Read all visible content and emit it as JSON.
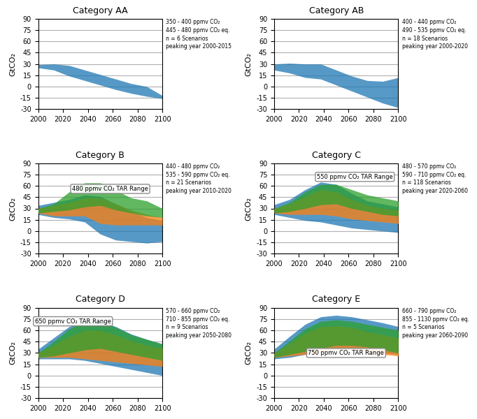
{
  "chart_data": [
    {
      "type": "band",
      "title": "Category AA",
      "ylabel": "GtCO₂",
      "x": [
        2000,
        2012.5,
        2025,
        2037.5,
        2050,
        2062.5,
        2075,
        2087.5,
        2100
      ],
      "xlim": [
        2000,
        2100
      ],
      "xticks": [
        2000,
        2020,
        2040,
        2060,
        2080,
        2100
      ],
      "ylim": [
        -30,
        90
      ],
      "yticks": [
        -30,
        -15,
        0,
        15,
        30,
        45,
        60,
        75,
        90
      ],
      "grid": "y",
      "text_box": [
        "350 - 400 ppmv CO₂",
        "445 - 480 ppmv CO₂ eq.",
        "n = 6 Scenarios",
        "peaking year 2000-2015"
      ],
      "annotations": [],
      "series": [
        {
          "high": [
            29,
            30,
            28,
            22,
            16,
            10,
            4,
            0,
            -12
          ],
          "low": [
            25,
            22,
            14,
            8,
            2,
            -4,
            -9,
            -13,
            -16
          ]
        }
      ]
    },
    {
      "type": "band",
      "title": "Category AB",
      "ylabel": "GtCO₂",
      "x": [
        2000,
        2012.5,
        2025,
        2037.5,
        2050,
        2062.5,
        2075,
        2087.5,
        2100
      ],
      "xlim": [
        2000,
        2100
      ],
      "xticks": [
        2000,
        2020,
        2040,
        2060,
        2080,
        2100
      ],
      "ylim": [
        -30,
        90
      ],
      "yticks": [
        -30,
        -15,
        0,
        15,
        30,
        45,
        60,
        75,
        90
      ],
      "grid": "y",
      "text_box": [
        "400 - 440 ppmv CO₂",
        "490 - 535 ppmv CO₂ eq.",
        "n = 18 Scenarios",
        "peaking year 2000-2020"
      ],
      "annotations": [],
      "series": [
        {
          "high": [
            30,
            31,
            30,
            30,
            22,
            14,
            8,
            7,
            12
          ],
          "low": [
            22,
            18,
            12,
            10,
            2,
            -6,
            -14,
            -22,
            -28
          ]
        }
      ]
    },
    {
      "type": "band",
      "title": "Category B",
      "ylabel": "GtCO₂",
      "x": [
        2000,
        2012.5,
        2025,
        2037.5,
        2050,
        2062.5,
        2075,
        2087.5,
        2100
      ],
      "xlim": [
        2000,
        2100
      ],
      "xticks": [
        2000,
        2020,
        2040,
        2060,
        2080,
        2100
      ],
      "ylim": [
        -30,
        90
      ],
      "yticks": [
        -30,
        -15,
        0,
        15,
        30,
        45,
        60,
        75,
        90
      ],
      "grid": "y",
      "text_box": [
        "440 - 480 ppmv CO₂",
        "535 - 590 ppmv CO₂ eq.",
        "n = 21 Scenarios",
        "peaking year 2010-2020"
      ],
      "annotations": [
        {
          "text": "480 ppmv CO₂ TAR Range",
          "x": 2058,
          "y": 56
        }
      ],
      "series": [
        {
          "high": [
            34,
            38,
            42,
            48,
            46,
            36,
            26,
            18,
            14
          ],
          "low": [
            22,
            18,
            16,
            12,
            -4,
            -12,
            -14,
            -16,
            -14
          ]
        },
        {
          "high": [
            30,
            34,
            38,
            44,
            44,
            36,
            28,
            22,
            18
          ],
          "low": [
            24,
            20,
            20,
            20,
            10,
            8,
            8,
            8,
            8
          ]
        },
        {
          "high": [
            30,
            36,
            52,
            64,
            64,
            54,
            44,
            40,
            30
          ],
          "low": [
            24,
            26,
            28,
            32,
            34,
            28,
            24,
            20,
            18
          ]
        }
      ]
    },
    {
      "type": "band",
      "title": "Category C",
      "ylabel": "GtCO₂",
      "x": [
        2000,
        2012.5,
        2025,
        2037.5,
        2050,
        2062.5,
        2075,
        2087.5,
        2100
      ],
      "xlim": [
        2000,
        2100
      ],
      "xticks": [
        2000,
        2020,
        2040,
        2060,
        2080,
        2100
      ],
      "ylim": [
        -30,
        90
      ],
      "yticks": [
        -30,
        -15,
        0,
        15,
        30,
        45,
        60,
        75,
        90
      ],
      "grid": "y",
      "text_box": [
        "480 - 570 ppmv CO₂",
        "590 - 710 ppmv CO₂ eq.",
        "n = 118 Scenarios",
        "peaking year 2020-2060"
      ],
      "annotations": [
        {
          "text": "550 ppmv CO₂ TAR Range",
          "x": 2065,
          "y": 72
        }
      ],
      "series": [
        {
          "high": [
            35,
            42,
            55,
            65,
            62,
            50,
            40,
            36,
            32
          ],
          "low": [
            22,
            18,
            14,
            12,
            8,
            4,
            2,
            0,
            -2
          ]
        },
        {
          "high": [
            30,
            36,
            46,
            55,
            52,
            42,
            34,
            30,
            28
          ],
          "low": [
            24,
            22,
            22,
            22,
            20,
            16,
            14,
            12,
            10
          ]
        },
        {
          "high": [
            30,
            38,
            52,
            62,
            62,
            55,
            48,
            44,
            40
          ],
          "low": [
            24,
            26,
            30,
            35,
            36,
            30,
            26,
            22,
            20
          ]
        }
      ]
    },
    {
      "type": "band",
      "title": "Category D",
      "ylabel": "GtCO₂",
      "x": [
        2000,
        2012.5,
        2025,
        2037.5,
        2050,
        2062.5,
        2075,
        2087.5,
        2100
      ],
      "xlim": [
        2000,
        2100
      ],
      "xticks": [
        2000,
        2020,
        2040,
        2060,
        2080,
        2100
      ],
      "ylim": [
        -30,
        90
      ],
      "yticks": [
        -30,
        -15,
        0,
        15,
        30,
        45,
        60,
        75,
        90
      ],
      "grid": "y",
      "text_box": [
        "570 - 660 ppmv CO₂",
        "710 - 855 ppmv CO₂ eq.",
        "n = 9 Scenarios",
        "peaking year 2050-2080"
      ],
      "annotations": [
        {
          "text": "650 ppmv CO₂ TAR Range",
          "x": 2028,
          "y": 72
        }
      ],
      "series": [
        {
          "high": [
            35,
            50,
            65,
            72,
            72,
            65,
            55,
            48,
            42
          ],
          "low": [
            22,
            22,
            22,
            20,
            16,
            12,
            8,
            4,
            0
          ]
        },
        {
          "high": [
            30,
            40,
            52,
            60,
            60,
            54,
            46,
            40,
            36
          ],
          "low": [
            24,
            24,
            24,
            22,
            20,
            18,
            16,
            14,
            12
          ]
        },
        {
          "high": [
            30,
            45,
            62,
            72,
            72,
            64,
            54,
            48,
            42
          ],
          "low": [
            24,
            26,
            30,
            34,
            36,
            32,
            28,
            24,
            20
          ]
        }
      ]
    },
    {
      "type": "band",
      "title": "Category E",
      "ylabel": "GtCO₂",
      "x": [
        2000,
        2012.5,
        2025,
        2037.5,
        2050,
        2062.5,
        2075,
        2087.5,
        2100
      ],
      "xlim": [
        2000,
        2100
      ],
      "xticks": [
        2000,
        2020,
        2040,
        2060,
        2080,
        2100
      ],
      "ylim": [
        -30,
        90
      ],
      "yticks": [
        -30,
        -15,
        0,
        15,
        30,
        45,
        60,
        75,
        90
      ],
      "grid": "y",
      "text_box": [
        "660 - 790 ppmv CO₂",
        "855 - 1130 ppmv CO₂ eq.",
        "n = 5 Scenarios",
        "peaking year 2060-2090"
      ],
      "annotations": [
        {
          "text": "750 ppmv CO₂ TAR Range",
          "x": 2058,
          "y": 30
        }
      ],
      "series": [
        {
          "high": [
            35,
            52,
            68,
            78,
            80,
            78,
            74,
            70,
            65
          ],
          "low": [
            22,
            24,
            28,
            32,
            36,
            36,
            34,
            30,
            28
          ]
        },
        {
          "high": [
            30,
            42,
            56,
            65,
            66,
            64,
            58,
            54,
            50
          ],
          "low": [
            24,
            26,
            28,
            30,
            34,
            34,
            32,
            28,
            26
          ]
        },
        {
          "high": [
            30,
            46,
            62,
            72,
            74,
            72,
            68,
            64,
            60
          ],
          "low": [
            24,
            28,
            32,
            36,
            40,
            40,
            38,
            34,
            30
          ]
        }
      ]
    }
  ]
}
